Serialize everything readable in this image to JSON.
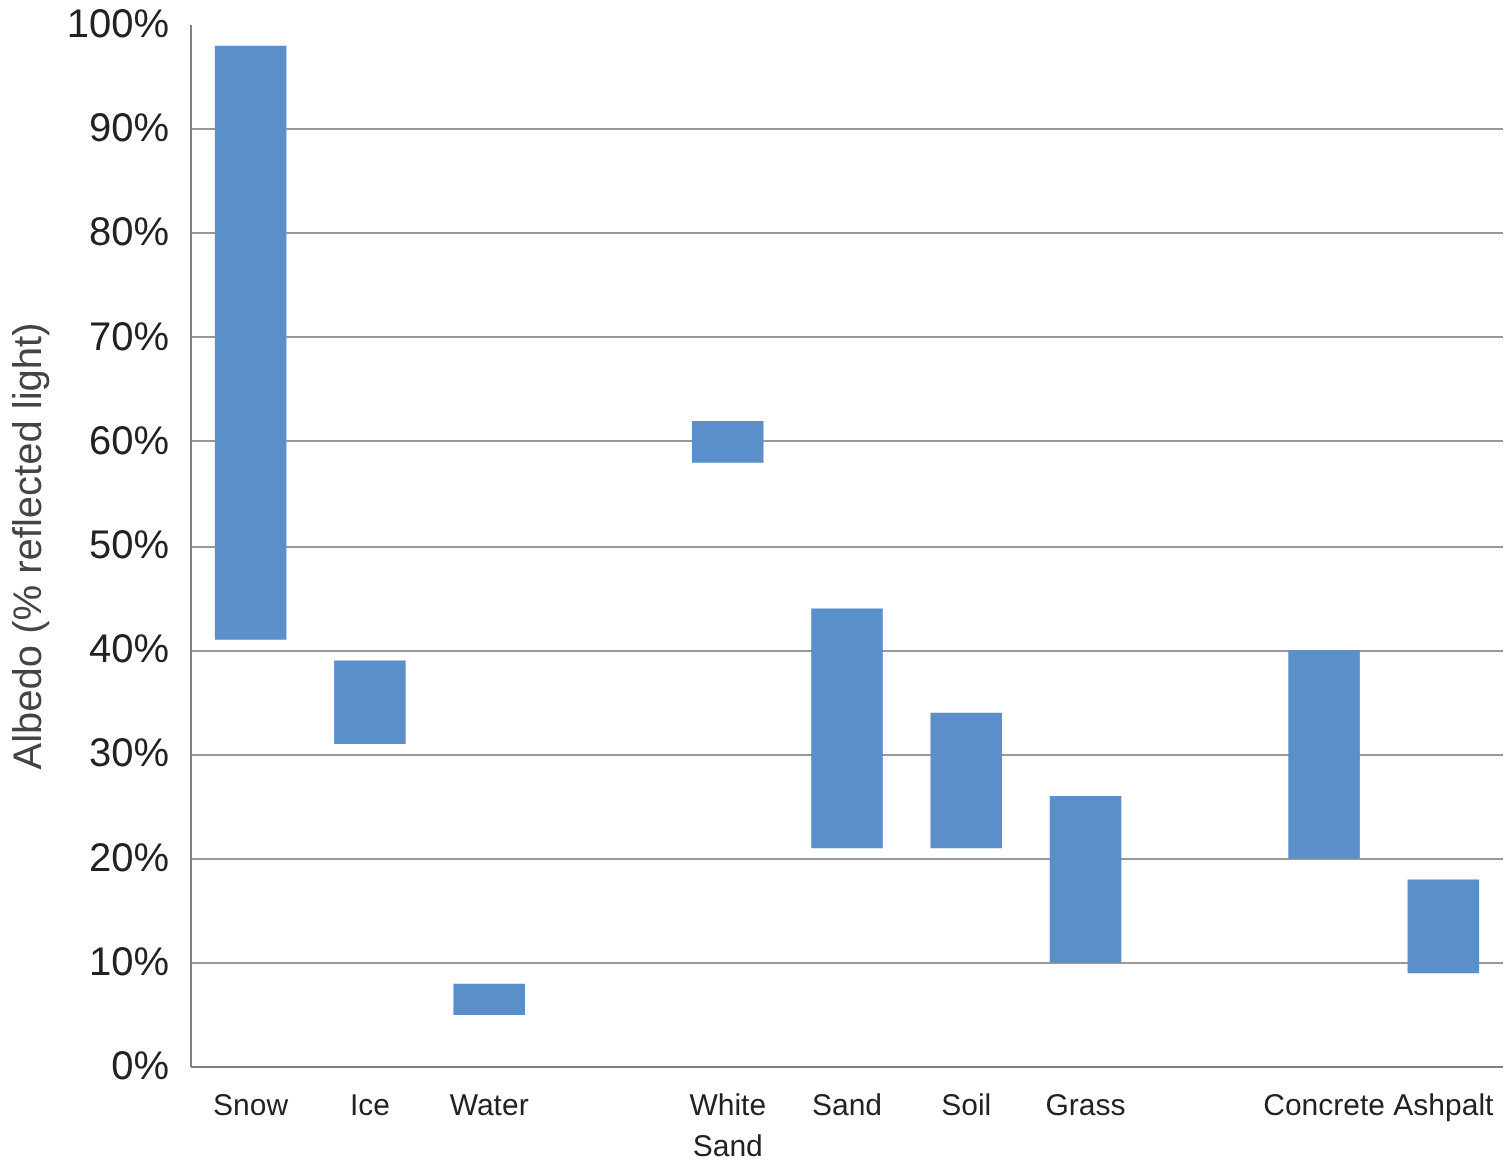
{
  "chart_data": {
    "type": "bar",
    "ylabel": "Albedo (% reflected light)",
    "categories": [
      "Snow",
      "Ice",
      "Water",
      null,
      "White Sand",
      "Sand",
      "Soil",
      "Grass",
      null,
      "Concrete",
      "Ashpalt"
    ],
    "base": [
      41,
      31,
      5,
      null,
      58,
      21,
      21,
      10,
      null,
      20,
      9
    ],
    "values": [
      57,
      8,
      3,
      null,
      4,
      23,
      13,
      16,
      null,
      20,
      9
    ],
    "color": "#5b8fc9",
    "ylim": [
      0,
      100
    ],
    "yticks": [
      {
        "value": 0,
        "label": "0%"
      },
      {
        "value": 10,
        "label": "10%"
      },
      {
        "value": 20,
        "label": "20%"
      },
      {
        "value": 30,
        "label": "30%"
      },
      {
        "value": 40,
        "label": "40%"
      },
      {
        "value": 50,
        "label": "50%"
      },
      {
        "value": 60,
        "label": "60%"
      },
      {
        "value": 70,
        "label": "70%"
      },
      {
        "value": 80,
        "label": "80%"
      },
      {
        "value": 90,
        "label": "90%"
      },
      {
        "value": 100,
        "label": "100%"
      }
    ],
    "grid": "y"
  }
}
